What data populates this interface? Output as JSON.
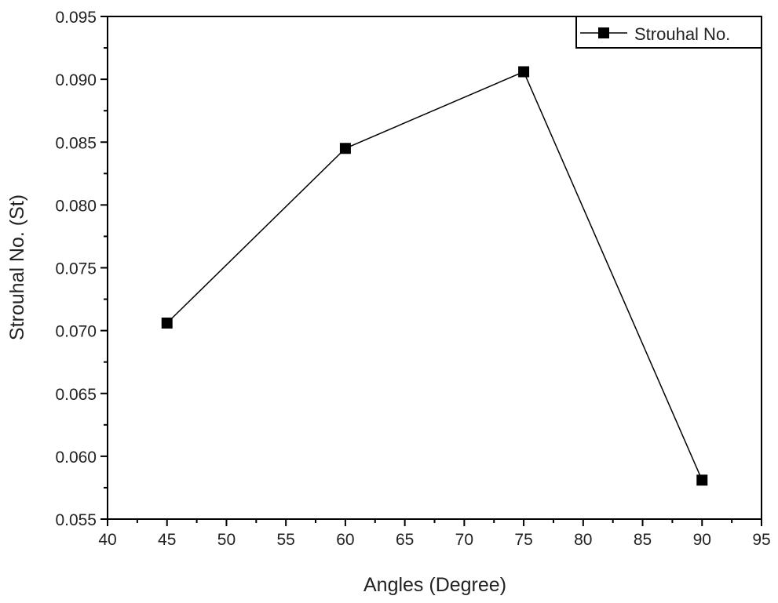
{
  "chart_data": {
    "type": "line",
    "title": "",
    "xlabel": "Angles (Degree)",
    "ylabel": "Strouhal No. (St)",
    "xlim": [
      40,
      95
    ],
    "ylim": [
      0.055,
      0.095
    ],
    "xticks": [
      "40",
      "45",
      "50",
      "55",
      "60",
      "65",
      "70",
      "75",
      "80",
      "85",
      "90",
      "95"
    ],
    "yticks": [
      "0.055",
      "0.060",
      "0.065",
      "0.070",
      "0.075",
      "0.080",
      "0.085",
      "0.090",
      "0.095"
    ],
    "grid": false,
    "legend_position": "top-right",
    "series": [
      {
        "name": "Strouhal No.",
        "marker": "square",
        "color": "#000000",
        "x": [
          45,
          60,
          75,
          90
        ],
        "y": [
          0.0706,
          0.0845,
          0.0906,
          0.0581
        ]
      }
    ]
  }
}
